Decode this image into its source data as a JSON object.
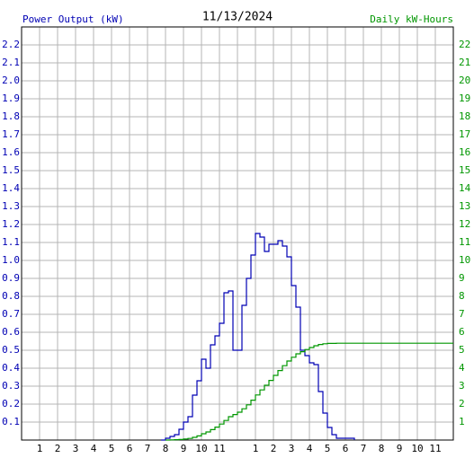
{
  "chart_data": {
    "type": "line",
    "drawstyle": "steps-post",
    "title": "11/13/2024",
    "xlim": [
      0,
      24
    ],
    "xticks": [
      {
        "value": 1,
        "label": "1"
      },
      {
        "value": 2,
        "label": "2"
      },
      {
        "value": 3,
        "label": "3"
      },
      {
        "value": 4,
        "label": "4"
      },
      {
        "value": 5,
        "label": "5"
      },
      {
        "value": 6,
        "label": "6"
      },
      {
        "value": 7,
        "label": "7"
      },
      {
        "value": 8,
        "label": "8"
      },
      {
        "value": 9,
        "label": "9"
      },
      {
        "value": 10,
        "label": "10"
      },
      {
        "value": 11,
        "label": "11"
      },
      {
        "value": 12,
        "label": null
      },
      {
        "value": 13,
        "label": "1"
      },
      {
        "value": 14,
        "label": "2"
      },
      {
        "value": 15,
        "label": "3"
      },
      {
        "value": 16,
        "label": "4"
      },
      {
        "value": 17,
        "label": "5"
      },
      {
        "value": 18,
        "label": "6"
      },
      {
        "value": 19,
        "label": "7"
      },
      {
        "value": 20,
        "label": "8"
      },
      {
        "value": 21,
        "label": "9"
      },
      {
        "value": 22,
        "label": "10"
      },
      {
        "value": 23,
        "label": "11"
      }
    ],
    "ylim": [
      0,
      2.3
    ],
    "yticks": [
      0.1,
      0.2,
      0.3,
      0.4,
      0.5,
      0.6,
      0.7,
      0.8,
      0.9,
      {
        "value": 1,
        "label": "1.0"
      },
      1.1,
      1.2,
      1.3,
      1.4,
      1.5,
      1.6,
      1.7,
      1.8,
      1.9,
      {
        "value": 2,
        "label": "2.0"
      },
      2.1,
      2.2
    ],
    "y2lim": [
      0,
      23
    ],
    "y2ticks": [
      1,
      2,
      3,
      4,
      5,
      6,
      7,
      8,
      9,
      10,
      11,
      12,
      13,
      14,
      15,
      16,
      17,
      18,
      19,
      20,
      21,
      22
    ],
    "grid": true,
    "series": [
      {
        "name": "Power Output (kW)",
        "color": "#0000b4",
        "x": [
          7.75,
          8,
          8.25,
          8.5,
          8.75,
          9,
          9.25,
          9.5,
          9.75,
          10,
          10.25,
          10.5,
          10.75,
          11,
          11.25,
          11.5,
          11.75,
          12,
          12.25,
          12.5,
          12.75,
          13,
          13.25,
          13.5,
          13.75,
          14,
          14.25,
          14.5,
          14.75,
          15,
          15.25,
          15.5,
          15.75,
          16,
          16.25,
          16.5,
          16.75,
          17,
          17.25,
          17.5,
          17.75,
          18,
          18.25,
          18.5
        ],
        "values": [
          0,
          0.01,
          0.02,
          0.03,
          0.06,
          0.1,
          0.13,
          0.25,
          0.33,
          0.45,
          0.4,
          0.53,
          0.58,
          0.65,
          0.82,
          0.83,
          0.5,
          0.5,
          0.75,
          0.9,
          1.03,
          1.15,
          1.13,
          1.05,
          1.09,
          1.09,
          1.11,
          1.08,
          1.02,
          0.86,
          0.74,
          0.5,
          0.47,
          0.43,
          0.42,
          0.27,
          0.15,
          0.07,
          0.03,
          0.01,
          0.01,
          0.01,
          0.01,
          0
        ]
      },
      {
        "name": "Daily kW-Hours",
        "color": "#009600",
        "axis": "y2",
        "x": [
          8,
          8.25,
          8.5,
          8.75,
          9,
          9.25,
          9.5,
          9.75,
          10,
          10.25,
          10.5,
          10.75,
          11,
          11.25,
          11.5,
          11.75,
          12,
          12.25,
          12.5,
          12.75,
          13,
          13.25,
          13.5,
          13.75,
          14,
          14.25,
          14.5,
          14.75,
          15,
          15.25,
          15.5,
          15.75,
          16,
          16.25,
          16.5,
          16.75,
          17,
          17.25,
          17.5,
          17.75,
          18,
          18.25,
          24
        ],
        "values": [
          0,
          0.01,
          0.02,
          0.03,
          0.06,
          0.09,
          0.15,
          0.23,
          0.35,
          0.45,
          0.58,
          0.72,
          0.89,
          1.09,
          1.3,
          1.42,
          1.55,
          1.74,
          1.96,
          2.22,
          2.51,
          2.79,
          3.05,
          3.32,
          3.6,
          3.87,
          4.14,
          4.4,
          4.61,
          4.8,
          4.92,
          5.04,
          5.15,
          5.25,
          5.32,
          5.36,
          5.38,
          5.38,
          5.39,
          5.39,
          5.39,
          5.39,
          5.39
        ]
      }
    ]
  }
}
